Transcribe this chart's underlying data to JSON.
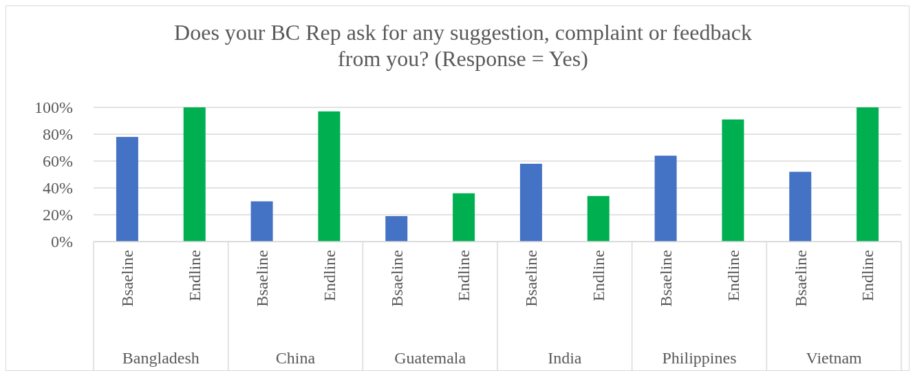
{
  "chart_data": {
    "type": "bar",
    "title": "Does your BC Rep ask for any suggestion, complaint or feedback\nfrom you? (Response = Yes)",
    "categories": [
      "Bsaeline",
      "Endline",
      "Bsaeline",
      "Endline",
      "Bsaeline",
      "Endline",
      "Bsaeline",
      "Endline",
      "Bsaeline",
      "Endline",
      "Bsaeline",
      "Endline"
    ],
    "values": [
      78,
      100,
      30,
      97,
      19,
      36,
      58,
      34,
      64,
      91,
      52,
      100
    ],
    "colors": [
      "#4472c4",
      "#00b050",
      "#4472c4",
      "#00b050",
      "#4472c4",
      "#00b050",
      "#4472c4",
      "#00b050",
      "#4472c4",
      "#00b050",
      "#4472c4",
      "#00b050"
    ],
    "annotations": [
      "Bangladesh",
      "China",
      "Guatemala",
      "India",
      "Philippines",
      "Vietnam"
    ],
    "ylim": [
      0,
      100
    ],
    "yticks": [
      {
        "value": 0,
        "label": "0%"
      },
      {
        "value": 20,
        "label": "20%"
      },
      {
        "value": 40,
        "label": "40%"
      },
      {
        "value": 60,
        "label": "60%"
      },
      {
        "value": 80,
        "label": "80%"
      },
      {
        "value": 100,
        "label": "100%"
      }
    ],
    "grid": "y"
  }
}
